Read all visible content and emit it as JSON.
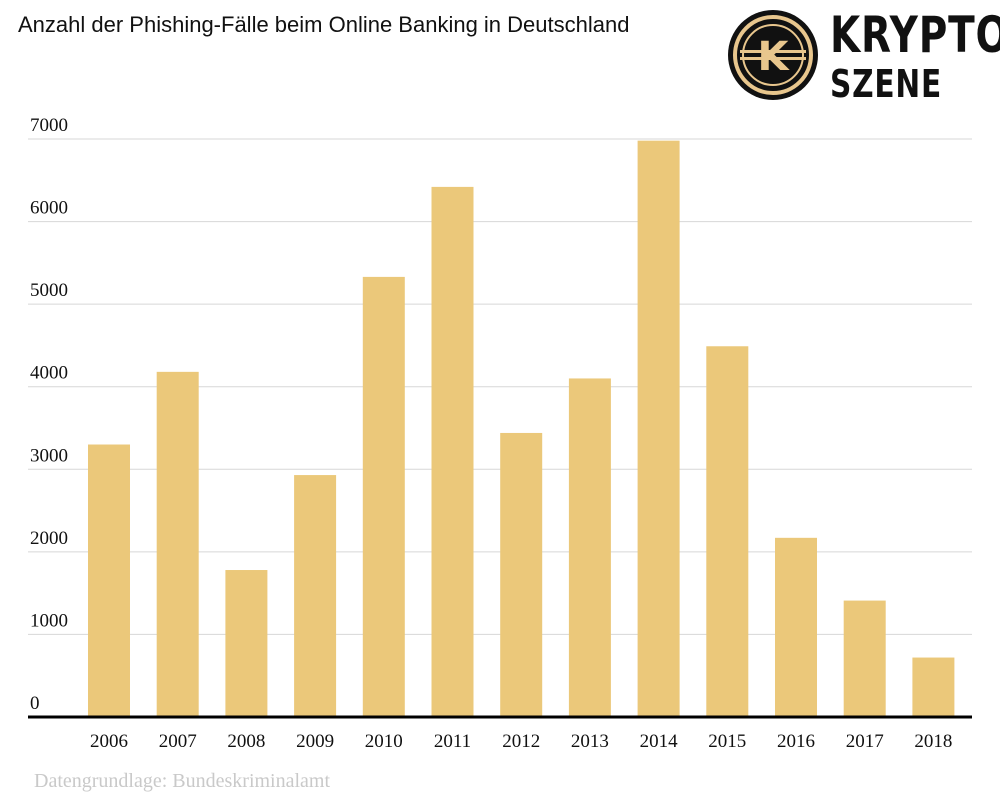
{
  "header": {
    "title": "Anzahl der Phishing-Fälle beim Online Banking in Deutschland"
  },
  "logo": {
    "line1": "KRYPTO",
    "line2": "SZENE",
    "emblem_letter": "K",
    "colors": {
      "dark": "#111111",
      "gold": "#e8c68d"
    }
  },
  "source": "Datengrundlage: Bundeskriminalamt",
  "chart_data": {
    "type": "bar",
    "title": "Anzahl der Phishing-Fälle beim Online Banking in Deutschland",
    "xlabel": "",
    "ylabel": "",
    "categories": [
      "2006",
      "2007",
      "2008",
      "2009",
      "2010",
      "2011",
      "2012",
      "2013",
      "2014",
      "2015",
      "2016",
      "2017",
      "2018"
    ],
    "values": [
      3300,
      4180,
      1780,
      2930,
      5330,
      6420,
      3440,
      4100,
      6980,
      4490,
      2170,
      1410,
      720
    ],
    "ylim": [
      0,
      7000
    ],
    "yticks": [
      0,
      1000,
      2000,
      3000,
      4000,
      5000,
      6000,
      7000
    ],
    "grid": true,
    "legend": "none",
    "colors": {
      "bar": "#ebc87a",
      "grid": "#d7d7d7",
      "axis": "#000000",
      "text": "#111111"
    }
  }
}
